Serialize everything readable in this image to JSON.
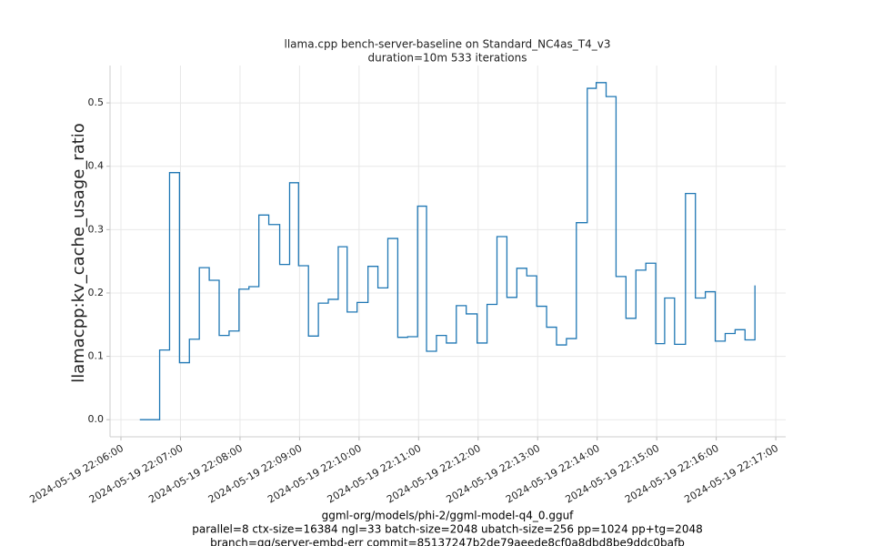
{
  "chart_data": {
    "type": "line",
    "title": "llama.cpp bench-server-baseline on Standard_NC4as_T4_v3",
    "subtitle": "duration=10m 533 iterations",
    "y_label": "llamacpp:kv_cache_usage_ratio",
    "footer": [
      "ggml-org/models/phi-2/ggml-model-q4_0.gguf",
      "parallel=8 ctx-size=16384 ngl=33 batch-size=2048 ubatch-size=256 pp=1024 pp+tg=2048",
      "branch=gg/server-embd-err commit=85137247b2de79aeede8cf0a8dbd8be9ddc0bafb"
    ],
    "drawstyle": "steps-post",
    "grid": true,
    "color": "#1f77b4",
    "x": [
      "2024-05-19 22:06:19",
      "2024-05-19 22:06:39",
      "2024-05-19 22:06:49",
      "2024-05-19 22:06:59",
      "2024-05-19 22:07:09",
      "2024-05-19 22:07:19",
      "2024-05-19 22:07:29",
      "2024-05-19 22:07:39",
      "2024-05-19 22:07:49",
      "2024-05-19 22:07:59",
      "2024-05-19 22:08:09",
      "2024-05-19 22:08:19",
      "2024-05-19 22:08:29",
      "2024-05-19 22:08:40",
      "2024-05-19 22:08:50",
      "2024-05-19 22:08:59",
      "2024-05-19 22:09:09",
      "2024-05-19 22:09:19",
      "2024-05-19 22:09:29",
      "2024-05-19 22:09:39",
      "2024-05-19 22:09:48",
      "2024-05-19 22:09:58",
      "2024-05-19 22:10:09",
      "2024-05-19 22:10:19",
      "2024-05-19 22:10:29",
      "2024-05-19 22:10:39",
      "2024-05-19 22:10:49",
      "2024-05-19 22:10:59",
      "2024-05-19 22:11:08",
      "2024-05-19 22:11:18",
      "2024-05-19 22:11:28",
      "2024-05-19 22:11:38",
      "2024-05-19 22:11:48",
      "2024-05-19 22:11:59",
      "2024-05-19 22:12:09",
      "2024-05-19 22:12:19",
      "2024-05-19 22:12:29",
      "2024-05-19 22:12:39",
      "2024-05-19 22:12:49",
      "2024-05-19 22:12:59",
      "2024-05-19 22:13:09",
      "2024-05-19 22:13:19",
      "2024-05-19 22:13:29",
      "2024-05-19 22:13:39",
      "2024-05-19 22:13:50",
      "2024-05-19 22:13:59",
      "2024-05-19 22:14:09",
      "2024-05-19 22:14:19",
      "2024-05-19 22:14:29",
      "2024-05-19 22:14:39",
      "2024-05-19 22:14:49",
      "2024-05-19 22:14:59",
      "2024-05-19 22:15:08",
      "2024-05-19 22:15:18",
      "2024-05-19 22:15:29",
      "2024-05-19 22:15:39",
      "2024-05-19 22:15:49",
      "2024-05-19 22:15:59",
      "2024-05-19 22:16:09",
      "2024-05-19 22:16:19",
      "2024-05-19 22:16:29",
      "2024-05-19 22:16:39"
    ],
    "values": [
      0.0,
      0.11,
      0.39,
      0.09,
      0.127,
      0.24,
      0.22,
      0.133,
      0.14,
      0.206,
      0.21,
      0.323,
      0.308,
      0.245,
      0.374,
      0.243,
      0.132,
      0.184,
      0.19,
      0.273,
      0.17,
      0.185,
      0.242,
      0.208,
      0.286,
      0.13,
      0.131,
      0.337,
      0.108,
      0.133,
      0.121,
      0.18,
      0.167,
      0.121,
      0.182,
      0.289,
      0.193,
      0.239,
      0.227,
      0.179,
      0.146,
      0.118,
      0.128,
      0.311,
      0.523,
      0.532,
      0.51,
      0.226,
      0.16,
      0.236,
      0.247,
      0.12,
      0.192,
      0.119,
      0.357,
      0.192,
      0.202,
      0.124,
      0.136,
      0.142,
      0.126,
      0.212
    ],
    "xlim": [
      "2024-05-19 22:05:49",
      "2024-05-19 22:17:10"
    ],
    "xticks": [
      "2024-05-19 22:06:00",
      "2024-05-19 22:07:00",
      "2024-05-19 22:08:00",
      "2024-05-19 22:09:00",
      "2024-05-19 22:10:00",
      "2024-05-19 22:11:00",
      "2024-05-19 22:12:00",
      "2024-05-19 22:13:00",
      "2024-05-19 22:14:00",
      "2024-05-19 22:15:00",
      "2024-05-19 22:16:00",
      "2024-05-19 22:17:00"
    ],
    "ylim": [
      -0.027,
      0.559
    ],
    "yticks": [
      {
        "value": 0,
        "label": "0.0"
      },
      0.1,
      0.2,
      0.3,
      0.4,
      0.5
    ]
  }
}
